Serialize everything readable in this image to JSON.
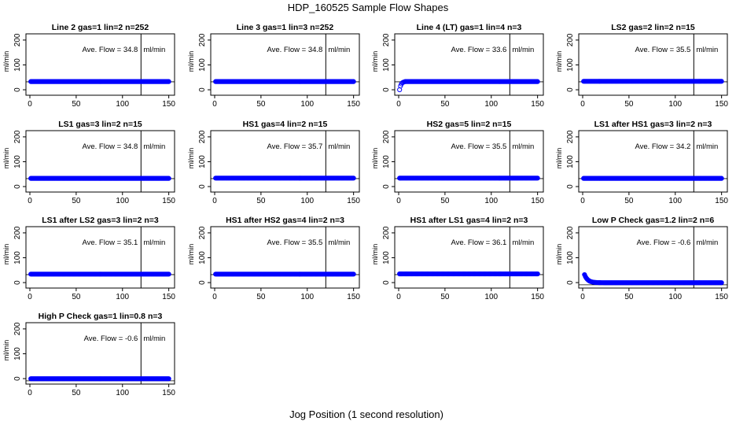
{
  "page": {
    "title": "HDP_160525  Sample Flow Shapes",
    "xlabel": "Jog Position (1 second resolution)"
  },
  "colors": {
    "points": "#0000ff",
    "axes": "#000000",
    "background": "#ffffff"
  },
  "chart_data": [
    {
      "type": "scatter",
      "title": "Line 2 gas=1 lin=2 n=252",
      "ylabel": "ml/min",
      "xticks": [
        0,
        50,
        100,
        150
      ],
      "yticks": [
        0,
        100,
        200
      ],
      "xlim": [
        0,
        152
      ],
      "ylim": [
        -22,
        225
      ],
      "vline": 120,
      "hline": 32,
      "flow_label": "Ave. Flow =",
      "flow_value": "34.8",
      "flow_unit": "ml/min",
      "shape": {
        "kind": "flat",
        "level": 33,
        "x_start": 1,
        "x_end": 150
      }
    },
    {
      "type": "scatter",
      "title": "Line 3 gas=1 lin=3 n=252",
      "ylabel": "ml/min",
      "xticks": [
        0,
        50,
        100,
        150
      ],
      "yticks": [
        0,
        100,
        200
      ],
      "xlim": [
        0,
        152
      ],
      "ylim": [
        -22,
        225
      ],
      "vline": 120,
      "hline": 32,
      "flow_label": "Ave. Flow =",
      "flow_value": "34.8",
      "flow_unit": "ml/min",
      "shape": {
        "kind": "flat",
        "level": 33,
        "x_start": 1,
        "x_end": 150
      }
    },
    {
      "type": "scatter",
      "title": "Line 4 (LT) gas=1 lin=4 n=3",
      "ylabel": "ml/min",
      "xticks": [
        0,
        50,
        100,
        150
      ],
      "yticks": [
        0,
        100,
        200
      ],
      "xlim": [
        0,
        152
      ],
      "ylim": [
        -22,
        225
      ],
      "vline": 120,
      "hline": 32,
      "flow_label": "Ave. Flow =",
      "flow_value": "33.6",
      "flow_unit": "ml/min",
      "shape": {
        "kind": "ramp",
        "level": 33,
        "start": 0,
        "ramp_len": 6,
        "x_start": 1,
        "x_end": 150
      }
    },
    {
      "type": "scatter",
      "title": "LS2 gas=2 lin=2 n=15",
      "ylabel": "ml/min",
      "xticks": [
        0,
        50,
        100,
        150
      ],
      "yticks": [
        0,
        100,
        200
      ],
      "xlim": [
        0,
        152
      ],
      "ylim": [
        -22,
        225
      ],
      "vline": 120,
      "hline": 32,
      "flow_label": "Ave. Flow =",
      "flow_value": "35.5",
      "flow_unit": "ml/min",
      "shape": {
        "kind": "flat",
        "level": 34,
        "x_start": 1,
        "x_end": 150
      }
    },
    {
      "type": "scatter",
      "title": "LS1 gas=3 lin=2 n=15",
      "ylabel": "ml/min",
      "xticks": [
        0,
        50,
        100,
        150
      ],
      "yticks": [
        0,
        100,
        200
      ],
      "xlim": [
        0,
        152
      ],
      "ylim": [
        -22,
        225
      ],
      "vline": 120,
      "hline": 32,
      "flow_label": "Ave. Flow =",
      "flow_value": "34.8",
      "flow_unit": "ml/min",
      "shape": {
        "kind": "flat",
        "level": 33,
        "x_start": 1,
        "x_end": 150
      }
    },
    {
      "type": "scatter",
      "title": "HS1 gas=4 lin=2 n=15",
      "ylabel": "ml/min",
      "xticks": [
        0,
        50,
        100,
        150
      ],
      "yticks": [
        0,
        100,
        200
      ],
      "xlim": [
        0,
        152
      ],
      "ylim": [
        -22,
        225
      ],
      "vline": 120,
      "hline": 32,
      "flow_label": "Ave. Flow =",
      "flow_value": "35.7",
      "flow_unit": "ml/min",
      "shape": {
        "kind": "flat",
        "level": 34,
        "x_start": 1,
        "x_end": 150
      }
    },
    {
      "type": "scatter",
      "title": "HS2 gas=5 lin=2 n=15",
      "ylabel": "ml/min",
      "xticks": [
        0,
        50,
        100,
        150
      ],
      "yticks": [
        0,
        100,
        200
      ],
      "xlim": [
        0,
        152
      ],
      "ylim": [
        -22,
        225
      ],
      "vline": 120,
      "hline": 32,
      "flow_label": "Ave. Flow =",
      "flow_value": "35.5",
      "flow_unit": "ml/min",
      "shape": {
        "kind": "flat",
        "level": 34,
        "x_start": 1,
        "x_end": 150
      }
    },
    {
      "type": "scatter",
      "title": "LS1 after HS1 gas=3 lin=2 n=3",
      "ylabel": "ml/min",
      "xticks": [
        0,
        50,
        100,
        150
      ],
      "yticks": [
        0,
        100,
        200
      ],
      "xlim": [
        0,
        152
      ],
      "ylim": [
        -22,
        225
      ],
      "vline": 120,
      "hline": 32,
      "flow_label": "Ave. Flow =",
      "flow_value": "34.2",
      "flow_unit": "ml/min",
      "shape": {
        "kind": "flat",
        "level": 33,
        "x_start": 1,
        "x_end": 150
      }
    },
    {
      "type": "scatter",
      "title": "LS1 after LS2 gas=3 lin=2 n=3",
      "ylabel": "ml/min",
      "xticks": [
        0,
        50,
        100,
        150
      ],
      "yticks": [
        0,
        100,
        200
      ],
      "xlim": [
        0,
        152
      ],
      "ylim": [
        -22,
        225
      ],
      "vline": 120,
      "hline": 32,
      "flow_label": "Ave. Flow =",
      "flow_value": "35.1",
      "flow_unit": "ml/min",
      "shape": {
        "kind": "flat",
        "level": 34,
        "x_start": 1,
        "x_end": 150
      }
    },
    {
      "type": "scatter",
      "title": "HS1 after HS2 gas=4 lin=2 n=3",
      "ylabel": "ml/min",
      "xticks": [
        0,
        50,
        100,
        150
      ],
      "yticks": [
        0,
        100,
        200
      ],
      "xlim": [
        0,
        152
      ],
      "ylim": [
        -22,
        225
      ],
      "vline": 120,
      "hline": 32,
      "flow_label": "Ave. Flow =",
      "flow_value": "35.5",
      "flow_unit": "ml/min",
      "shape": {
        "kind": "flat",
        "level": 34,
        "x_start": 1,
        "x_end": 150
      }
    },
    {
      "type": "scatter",
      "title": "HS1 after LS1 gas=4 lin=2 n=3",
      "ylabel": "ml/min",
      "xticks": [
        0,
        50,
        100,
        150
      ],
      "yticks": [
        0,
        100,
        200
      ],
      "xlim": [
        0,
        152
      ],
      "ylim": [
        -22,
        225
      ],
      "vline": 120,
      "hline": 32,
      "flow_label": "Ave. Flow =",
      "flow_value": "36.1",
      "flow_unit": "ml/min",
      "shape": {
        "kind": "flat",
        "level": 35,
        "x_start": 1,
        "x_end": 150
      }
    },
    {
      "type": "scatter",
      "title": "Low P Check gas=1.2 lin=2 n=6",
      "ylabel": "ml/min",
      "xticks": [
        0,
        50,
        100,
        150
      ],
      "yticks": [
        0,
        100,
        200
      ],
      "xlim": [
        0,
        152
      ],
      "ylim": [
        -22,
        225
      ],
      "vline": 120,
      "hline": -9,
      "flow_label": "Ave. Flow =",
      "flow_value": "-0.6",
      "flow_unit": "ml/min",
      "shape": {
        "kind": "decay",
        "level": -0.6,
        "start": 32,
        "tau": 3.5,
        "x_start": 2,
        "x_end": 150
      }
    },
    {
      "type": "scatter",
      "title": "High P Check gas=1 lin=0.8 n=3",
      "ylabel": "ml/min",
      "xticks": [
        0,
        50,
        100,
        150
      ],
      "yticks": [
        0,
        100,
        200
      ],
      "xlim": [
        0,
        152
      ],
      "ylim": [
        -22,
        225
      ],
      "vline": 120,
      "hline": -9,
      "flow_label": "Ave. Flow =",
      "flow_value": "-0.6",
      "flow_unit": "ml/min",
      "shape": {
        "kind": "flat",
        "level": -0.6,
        "x_start": 1,
        "x_end": 150
      }
    }
  ]
}
